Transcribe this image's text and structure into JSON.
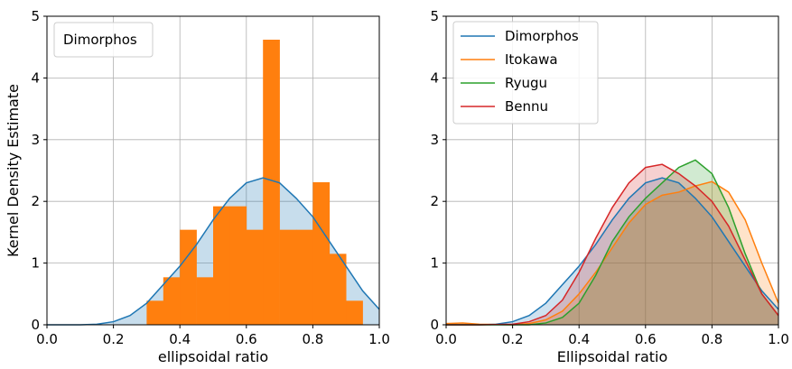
{
  "chart_data": [
    {
      "type": "bar",
      "panel": "left",
      "xlabel": "ellipsoidal ratio",
      "ylabel": "Kernel Density Estimate",
      "xlim": [
        0.0,
        1.0
      ],
      "ylim": [
        0,
        5
      ],
      "xticks": [
        "0.0",
        "0.2",
        "0.4",
        "0.6",
        "0.8",
        "1.0"
      ],
      "yticks": [
        "0",
        "1",
        "2",
        "3",
        "4",
        "5"
      ],
      "grid": true,
      "legend": {
        "placement": "top-left",
        "entries": [
          "Dimorphos"
        ]
      },
      "histogram": {
        "color": "#ff7f0e",
        "bin_edges": [
          0.3,
          0.35,
          0.4,
          0.45,
          0.5,
          0.55,
          0.6,
          0.65,
          0.7,
          0.75,
          0.8,
          0.85,
          0.9,
          0.95
        ],
        "values": [
          0.39,
          0.77,
          1.54,
          0.77,
          1.92,
          1.92,
          1.54,
          4.62,
          1.54,
          1.54,
          2.31,
          1.15,
          0.39
        ]
      },
      "series": [
        {
          "name": "Dimorphos",
          "color": "#1f77b4",
          "fill": "#1f77b4",
          "x": [
            0.0,
            0.1,
            0.15,
            0.2,
            0.25,
            0.3,
            0.35,
            0.4,
            0.45,
            0.5,
            0.55,
            0.6,
            0.65,
            0.7,
            0.75,
            0.8,
            0.85,
            0.9,
            0.95,
            1.0
          ],
          "y": [
            0.0,
            0.0,
            0.01,
            0.05,
            0.15,
            0.35,
            0.65,
            0.95,
            1.3,
            1.7,
            2.05,
            2.3,
            2.38,
            2.3,
            2.05,
            1.75,
            1.35,
            0.95,
            0.55,
            0.25
          ]
        }
      ]
    },
    {
      "type": "area",
      "panel": "right",
      "xlabel": "Ellipsoidal ratio",
      "ylabel": "",
      "xlim": [
        0.0,
        1.0
      ],
      "ylim": [
        0,
        5
      ],
      "xticks": [
        "0.0",
        "0.2",
        "0.4",
        "0.6",
        "0.8",
        "1.0"
      ],
      "yticks": [
        "0",
        "1",
        "2",
        "3",
        "4",
        "5"
      ],
      "grid": true,
      "legend": {
        "placement": "top-left"
      },
      "series": [
        {
          "name": "Dimorphos",
          "color": "#1f77b4",
          "x": [
            0.0,
            0.1,
            0.15,
            0.2,
            0.25,
            0.3,
            0.35,
            0.4,
            0.45,
            0.5,
            0.55,
            0.6,
            0.65,
            0.7,
            0.75,
            0.8,
            0.85,
            0.9,
            0.95,
            1.0
          ],
          "y": [
            0.0,
            0.0,
            0.01,
            0.05,
            0.15,
            0.35,
            0.65,
            0.95,
            1.3,
            1.7,
            2.05,
            2.3,
            2.38,
            2.3,
            2.05,
            1.75,
            1.35,
            0.95,
            0.55,
            0.25
          ]
        },
        {
          "name": "Itokawa",
          "color": "#ff7f0e",
          "x": [
            0.0,
            0.05,
            0.1,
            0.2,
            0.25,
            0.3,
            0.35,
            0.4,
            0.45,
            0.5,
            0.55,
            0.6,
            0.65,
            0.7,
            0.75,
            0.8,
            0.85,
            0.9,
            0.95,
            1.0
          ],
          "y": [
            0.02,
            0.03,
            0.01,
            0.0,
            0.02,
            0.08,
            0.22,
            0.5,
            0.85,
            1.25,
            1.65,
            1.95,
            2.1,
            2.15,
            2.25,
            2.32,
            2.15,
            1.7,
            1.0,
            0.35
          ]
        },
        {
          "name": "Ryugu",
          "color": "#2ca02c",
          "x": [
            0.0,
            0.05,
            0.1,
            0.2,
            0.25,
            0.3,
            0.35,
            0.4,
            0.45,
            0.5,
            0.55,
            0.6,
            0.65,
            0.7,
            0.75,
            0.8,
            0.85,
            0.9,
            0.95,
            1.0
          ],
          "y": [
            0.0,
            0.0,
            0.0,
            0.0,
            0.0,
            0.03,
            0.12,
            0.35,
            0.8,
            1.35,
            1.75,
            2.05,
            2.3,
            2.55,
            2.67,
            2.45,
            1.9,
            1.15,
            0.5,
            0.15
          ]
        },
        {
          "name": "Bennu",
          "color": "#d62728",
          "x": [
            0.0,
            0.1,
            0.2,
            0.25,
            0.3,
            0.35,
            0.4,
            0.45,
            0.5,
            0.55,
            0.6,
            0.65,
            0.7,
            0.75,
            0.8,
            0.85,
            0.9,
            0.95,
            1.0
          ],
          "y": [
            0.0,
            0.0,
            0.01,
            0.05,
            0.15,
            0.4,
            0.85,
            1.4,
            1.9,
            2.3,
            2.55,
            2.6,
            2.45,
            2.25,
            2.0,
            1.6,
            1.05,
            0.5,
            0.15
          ]
        }
      ]
    }
  ]
}
